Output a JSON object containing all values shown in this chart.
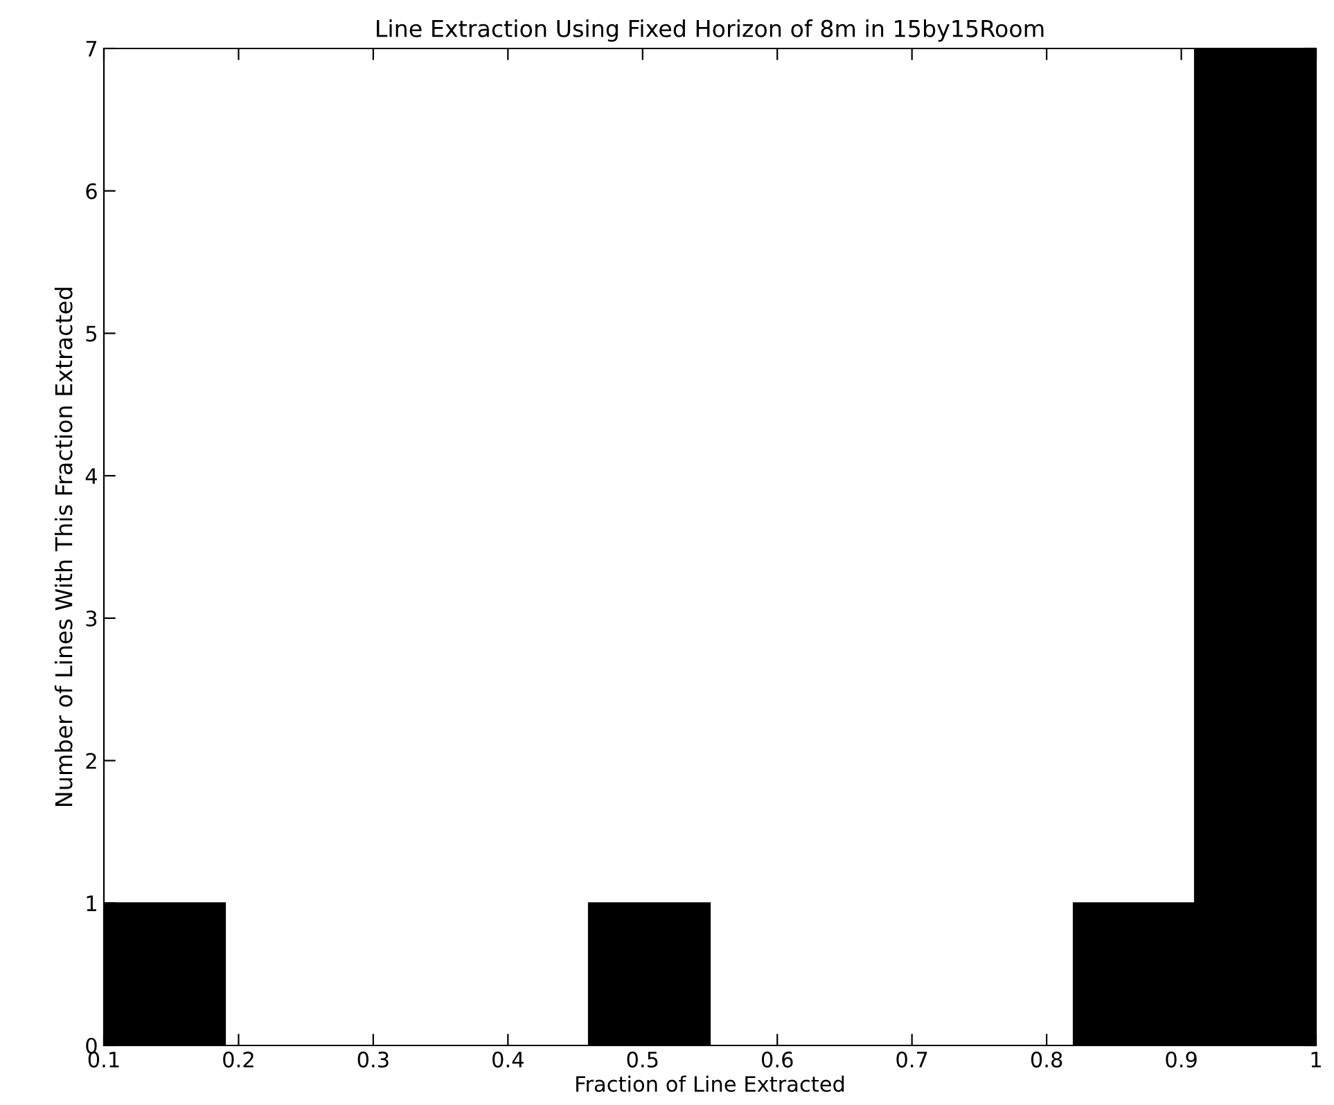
{
  "chart_data": {
    "type": "histogram",
    "title": "Line Extraction Using Fixed Horizon of 8m in 15by15Room",
    "xlabel": "Fraction of Line Extracted",
    "ylabel": "Number of Lines With This Fraction Extracted",
    "bins": [
      0.1,
      0.19,
      0.28,
      0.37,
      0.46,
      0.55,
      0.64,
      0.73,
      0.82,
      0.91,
      1.0
    ],
    "values": [
      1,
      0,
      0,
      0,
      1,
      0,
      0,
      0,
      1,
      7
    ],
    "color": "#000000",
    "xlim": [
      0.1,
      1
    ],
    "xticks": [
      0.1,
      0.2,
      0.3,
      0.4,
      0.5,
      0.6,
      0.7,
      0.8,
      0.9,
      1
    ],
    "ylim": [
      0,
      7
    ],
    "yticks": [
      0,
      1,
      2,
      3,
      4,
      5,
      6,
      7
    ],
    "grid": false
  }
}
